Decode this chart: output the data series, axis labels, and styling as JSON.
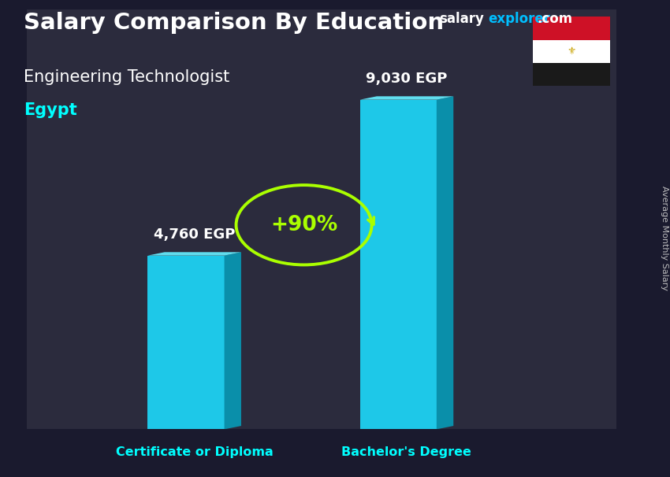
{
  "title_main": "Salary Comparison By Education",
  "title_sub": "Engineering Technologist",
  "title_country": "Egypt",
  "ylabel_rotated": "Average Monthly Salary",
  "categories": [
    "Certificate or Diploma",
    "Bachelor's Degree"
  ],
  "values": [
    4760,
    9030
  ],
  "value_labels": [
    "4,760 EGP",
    "9,030 EGP"
  ],
  "pct_label": "+90%",
  "bar_color_main": "#1EC8E8",
  "bar_color_side": "#0A8FAA",
  "bar_color_top": "#60DDEE",
  "pct_color": "#AAFF00",
  "title_color": "#FFFFFF",
  "subtitle_color": "#FFFFFF",
  "country_color": "#00FFFF",
  "category_color": "#00FFFF",
  "value_label_color": "#FFFFFF",
  "watermark_salary_color": "#FFFFFF",
  "watermark_explorer_color": "#00BFFF",
  "background_color": "#1a1a2e",
  "bg_overlay_color": "#2a2a3a",
  "ylim": [
    0,
    11500
  ],
  "bar_width": 0.13,
  "figsize": [
    8.5,
    6.06
  ],
  "dpi": 100,
  "flag_red": "#CE1126",
  "flag_white": "#FFFFFF",
  "flag_black": "#1a1a1a",
  "flag_gold": "#C8A200"
}
